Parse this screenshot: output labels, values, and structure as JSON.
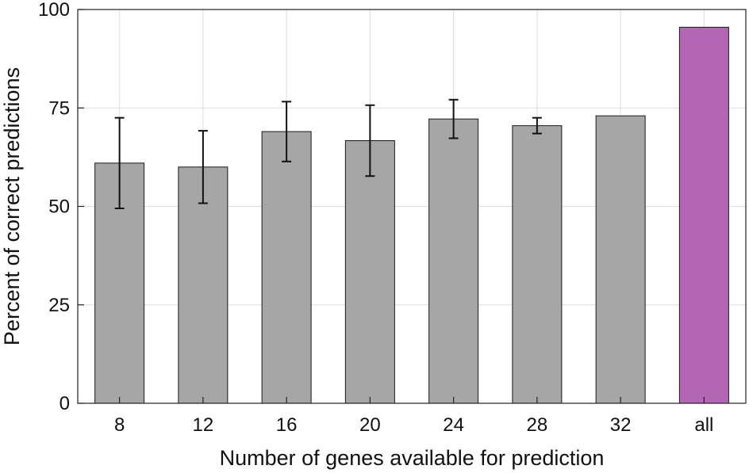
{
  "chart_data": {
    "type": "bar",
    "categories": [
      "8",
      "12",
      "16",
      "20",
      "24",
      "28",
      "32",
      "all"
    ],
    "values": [
      61,
      60,
      69,
      66.7,
      72.2,
      70.5,
      73,
      95.5
    ],
    "error": [
      11.5,
      9.2,
      7.6,
      9,
      4.9,
      2,
      0,
      0
    ],
    "bar_colors": [
      "#a6a6a6",
      "#a6a6a6",
      "#a6a6a6",
      "#a6a6a6",
      "#a6a6a6",
      "#a6a6a6",
      "#a6a6a6",
      "#b366b3"
    ],
    "xlabel": "Number of genes available for prediction",
    "ylabel": "Percent of correct predictions",
    "ylim": [
      0,
      100
    ],
    "yticks": [
      0,
      25,
      50,
      75,
      100
    ],
    "grid": true,
    "colors": {
      "gray_bar": "#a6a6a6",
      "highlight_bar": "#b366b3",
      "grid": "#dddddd",
      "axis": "#222222"
    }
  }
}
